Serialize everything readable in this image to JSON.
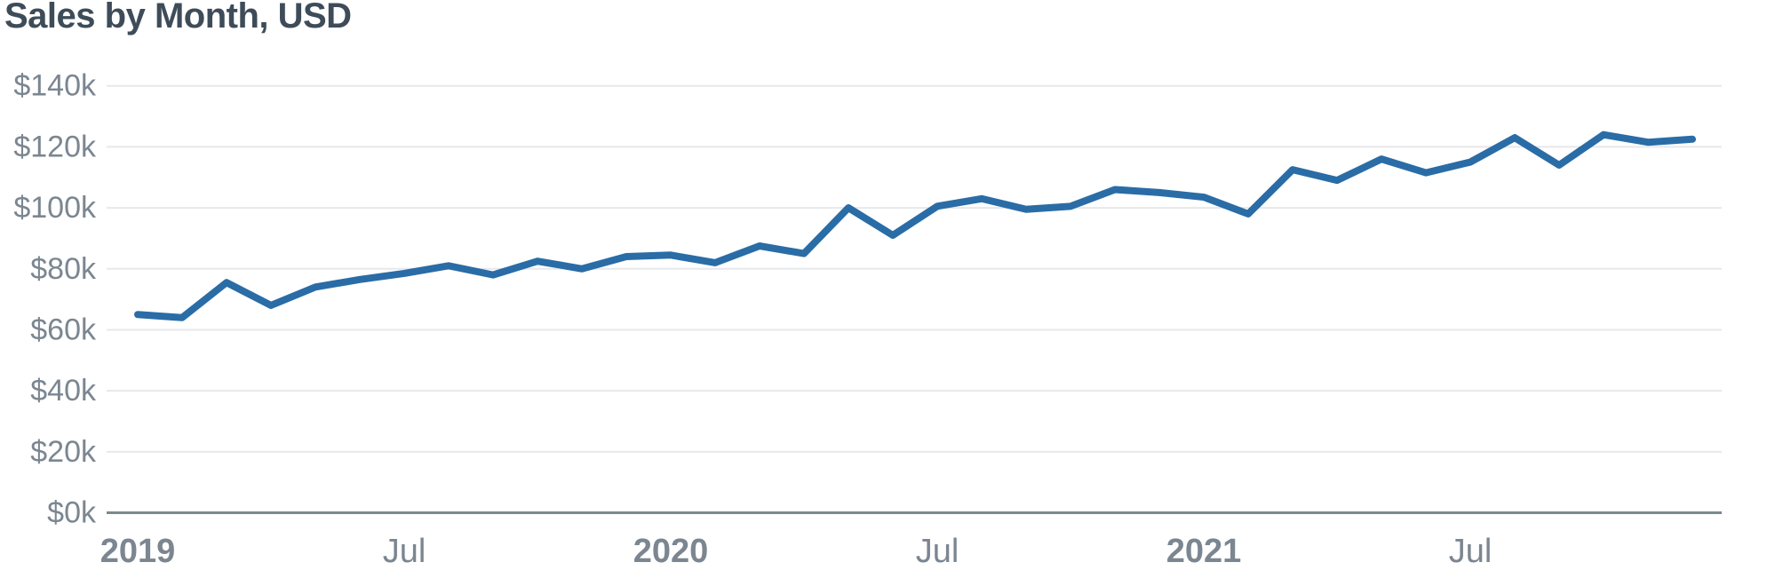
{
  "title": "Sales by Month, USD",
  "colors": {
    "title_text": "#3e4c59",
    "axis_text": "#7b8691",
    "grid_line": "#e7e8eb",
    "axis_line": "#7d8890",
    "series_line": "#2a6ca6",
    "background": "#ffffff"
  },
  "chart_data": {
    "type": "line",
    "title": "Sales by Month, USD",
    "xlabel": "",
    "ylabel": "USD",
    "ylim": [
      0,
      140000
    ],
    "y_tick_step": 20000,
    "grid": "horizontal",
    "legend": "none",
    "x": [
      "Jan 2019",
      "Feb 2019",
      "Mar 2019",
      "Apr 2019",
      "May 2019",
      "Jun 2019",
      "Jul 2019",
      "Aug 2019",
      "Sep 2019",
      "Oct 2019",
      "Nov 2019",
      "Dec 2019",
      "Jan 2020",
      "Feb 2020",
      "Mar 2020",
      "Apr 2020",
      "May 2020",
      "Jun 2020",
      "Jul 2020",
      "Aug 2020",
      "Sep 2020",
      "Oct 2020",
      "Nov 2020",
      "Dec 2020",
      "Jan 2021",
      "Feb 2021",
      "Mar 2021",
      "Apr 2021",
      "May 2021",
      "Jun 2021",
      "Jul 2021",
      "Aug 2021",
      "Sep 2021",
      "Oct 2021",
      "Nov 2021",
      "Dec 2021"
    ],
    "values": [
      65000,
      64000,
      75500,
      68000,
      74000,
      76500,
      78500,
      81000,
      78000,
      82500,
      80000,
      84000,
      84500,
      82000,
      87500,
      85000,
      100000,
      91000,
      100500,
      103000,
      99500,
      100500,
      106000,
      105000,
      103500,
      98000,
      112500,
      109000,
      116000,
      111500,
      115000,
      123000,
      114000,
      124000,
      121500,
      122500
    ],
    "y_tick_labels": [
      "$0k",
      "$20k",
      "$40k",
      "$60k",
      "$80k",
      "$100k",
      "$120k",
      "$140k"
    ],
    "x_tick_labels": [
      {
        "label": "2019",
        "month_index": 0,
        "bold": true
      },
      {
        "label": "Jul",
        "month_index": 6,
        "bold": false
      },
      {
        "label": "2020",
        "month_index": 12,
        "bold": true
      },
      {
        "label": "Jul",
        "month_index": 18,
        "bold": false
      },
      {
        "label": "2021",
        "month_index": 24,
        "bold": true
      },
      {
        "label": "Jul",
        "month_index": 30,
        "bold": false
      }
    ]
  }
}
